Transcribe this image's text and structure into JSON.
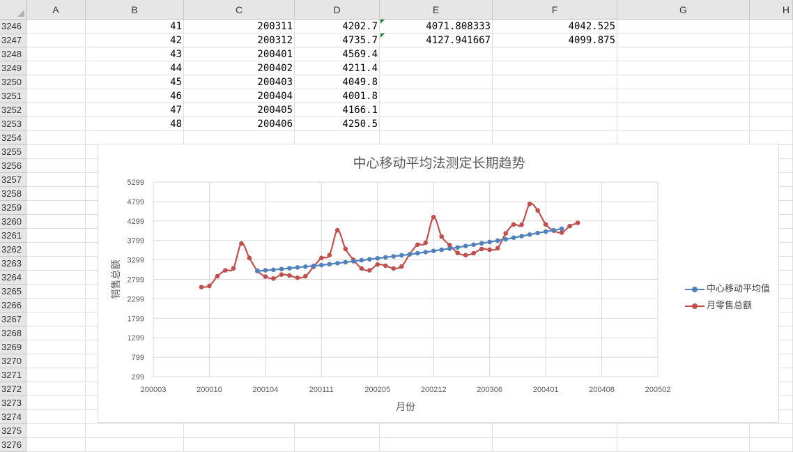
{
  "columns": [
    "A",
    "B",
    "C",
    "D",
    "E",
    "F",
    "G",
    "H"
  ],
  "rows": [
    {
      "num": "3246",
      "b": "41",
      "c": "200311",
      "d": "4202.7",
      "e": "4071.808333",
      "f": "4042.525"
    },
    {
      "num": "3247",
      "b": "42",
      "c": "200312",
      "d": "4735.7",
      "e": "4127.941667",
      "f": "4099.875"
    },
    {
      "num": "3248",
      "b": "43",
      "c": "200401",
      "d": "4569.4",
      "e": "",
      "f": ""
    },
    {
      "num": "3249",
      "b": "44",
      "c": "200402",
      "d": "4211.4",
      "e": "",
      "f": ""
    },
    {
      "num": "3250",
      "b": "45",
      "c": "200403",
      "d": "4049.8",
      "e": "",
      "f": ""
    },
    {
      "num": "3251",
      "b": "46",
      "c": "200404",
      "d": "4001.8",
      "e": "",
      "f": ""
    },
    {
      "num": "3252",
      "b": "47",
      "c": "200405",
      "d": "4166.1",
      "e": "",
      "f": ""
    },
    {
      "num": "3253",
      "b": "48",
      "c": "200406",
      "d": "4250.5",
      "e": "",
      "f": ""
    },
    {
      "num": "3254",
      "b": "",
      "c": "",
      "d": "",
      "e": "",
      "f": ""
    },
    {
      "num": "3255"
    },
    {
      "num": "3256"
    },
    {
      "num": "3257"
    },
    {
      "num": "3258"
    },
    {
      "num": "3259"
    },
    {
      "num": "3260"
    },
    {
      "num": "3261"
    },
    {
      "num": "3262"
    },
    {
      "num": "3263"
    },
    {
      "num": "3264"
    },
    {
      "num": "3265"
    },
    {
      "num": "3266"
    },
    {
      "num": "3267"
    },
    {
      "num": "3268"
    },
    {
      "num": "3269"
    },
    {
      "num": "3270"
    },
    {
      "num": "3271"
    },
    {
      "num": "3272"
    },
    {
      "num": "3273"
    },
    {
      "num": "3274"
    },
    {
      "num": "3275"
    },
    {
      "num": "3276"
    }
  ],
  "chart_data": {
    "type": "line",
    "title": "中心移动平均法测定长期趋势",
    "xlabel": "月份",
    "ylabel": "销售总额",
    "xlim_index": [
      0,
      24
    ],
    "x_tick_labels": [
      "200003",
      "200010",
      "200104",
      "200111",
      "200205",
      "200212",
      "200306",
      "200401",
      "200408",
      "200502"
    ],
    "ylim": [
      299,
      5299
    ],
    "y_ticks": [
      299,
      799,
      1299,
      1799,
      2299,
      2799,
      3299,
      3799,
      4299,
      4799,
      5299
    ],
    "grid": true,
    "legend_position": "right",
    "series": [
      {
        "name": "中心移动平均值",
        "color": "#4f81bd",
        "x_start_month_index": 7,
        "values": [
          3010,
          3030,
          3045,
          3065,
          3085,
          3105,
          3125,
          3145,
          3165,
          3190,
          3215,
          3240,
          3265,
          3290,
          3315,
          3340,
          3365,
          3390,
          3415,
          3440,
          3470,
          3500,
          3530,
          3560,
          3590,
          3620,
          3655,
          3690,
          3725,
          3760,
          3795,
          3830,
          3870,
          3910,
          3950,
          3990,
          4025,
          4060,
          4100
        ]
      },
      {
        "name": "月零售总额",
        "color": "#c0504d",
        "x_start_month_index": 0,
        "values": [
          2600,
          2630,
          2880,
          3030,
          3080,
          3720,
          3350,
          3020,
          2870,
          2820,
          2920,
          2900,
          2840,
          2880,
          3120,
          3350,
          3420,
          4060,
          3580,
          3300,
          3080,
          3030,
          3180,
          3150,
          3080,
          3130,
          3440,
          3690,
          3740,
          4400,
          3900,
          3680,
          3480,
          3420,
          3470,
          3580,
          3560,
          3600,
          3980,
          4210,
          4202.7,
          4735.7,
          4569.4,
          4211.4,
          4049.8,
          4001.8,
          4166.1,
          4250.5
        ]
      }
    ]
  }
}
